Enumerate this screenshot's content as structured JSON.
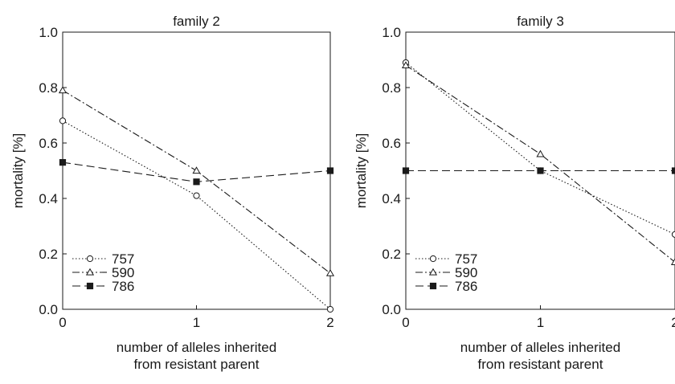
{
  "chart_data": [
    {
      "type": "line",
      "title": "family 2",
      "xlabel": [
        "number of alleles inherited",
        "from resistant parent"
      ],
      "ylabel": "mortality [%]",
      "x": [
        0,
        1,
        2
      ],
      "xticks": [
        "0",
        "1",
        "2"
      ],
      "yticks": [
        "0.0",
        "0.2",
        "0.4",
        "0.6",
        "0.8",
        "1.0"
      ],
      "xlim": [
        0,
        2
      ],
      "ylim": [
        0,
        1
      ],
      "grid": false,
      "legend_position": "bottom-left",
      "series": [
        {
          "name": "757",
          "marker": "circle-open",
          "dash": "dotted",
          "values": [
            0.68,
            0.41,
            0.0
          ]
        },
        {
          "name": "590",
          "marker": "triangle-open",
          "dash": "dash-dot",
          "values": [
            0.79,
            0.5,
            0.13
          ]
        },
        {
          "name": "786",
          "marker": "square-filled",
          "dash": "dashed",
          "values": [
            0.53,
            0.46,
            0.5
          ]
        }
      ]
    },
    {
      "type": "line",
      "title": "family 3",
      "xlabel": [
        "number of alleles inherited",
        "from resistant parent"
      ],
      "ylabel": "mortality [%]",
      "x": [
        0,
        1,
        2
      ],
      "xticks": [
        "0",
        "1",
        "2"
      ],
      "yticks": [
        "0.0",
        "0.2",
        "0.4",
        "0.6",
        "0.8",
        "1.0"
      ],
      "xlim": [
        0,
        2
      ],
      "ylim": [
        0,
        1
      ],
      "grid": false,
      "legend_position": "bottom-left",
      "series": [
        {
          "name": "757",
          "marker": "circle-open",
          "dash": "dotted",
          "values": [
            0.89,
            0.5,
            0.27
          ]
        },
        {
          "name": "590",
          "marker": "triangle-open",
          "dash": "dash-dot",
          "values": [
            0.88,
            0.56,
            0.17
          ]
        },
        {
          "name": "786",
          "marker": "square-filled",
          "dash": "dashed",
          "values": [
            0.5,
            0.5,
            0.5
          ]
        }
      ]
    }
  ]
}
